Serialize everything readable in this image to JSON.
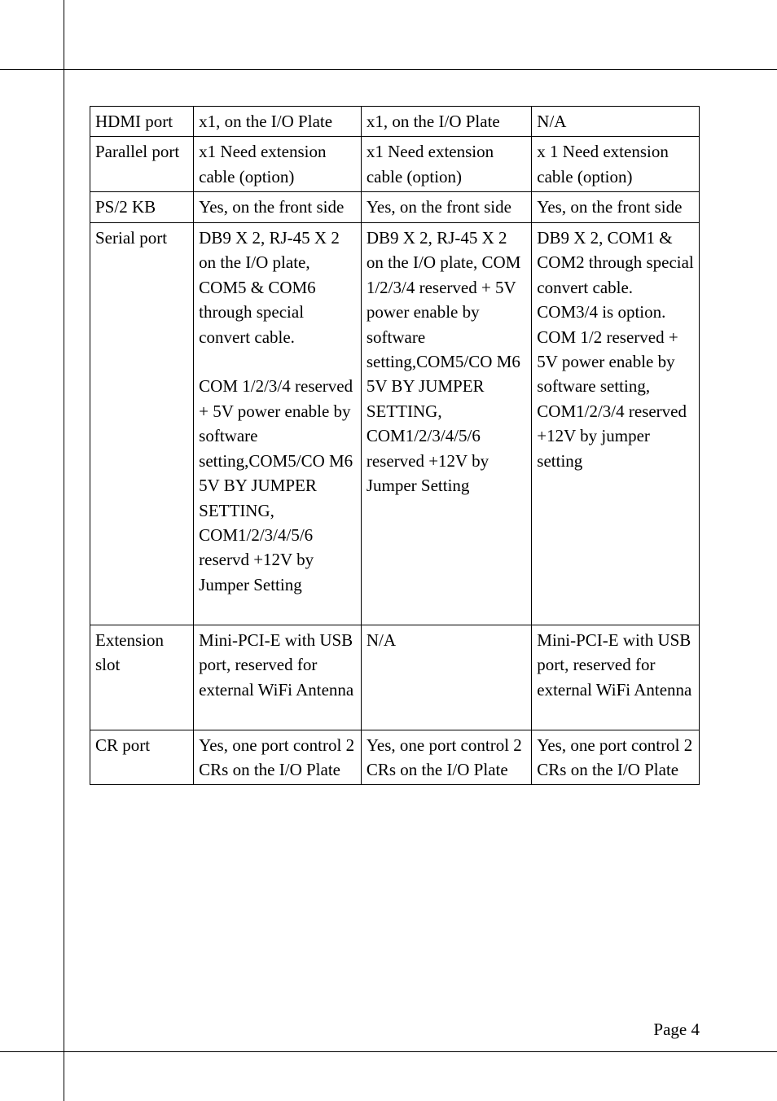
{
  "page_number": "Page 4",
  "table": {
    "rows": [
      {
        "label": "HDMI port",
        "col2": "x1, on the I/O Plate",
        "col3": "x1, on the I/O Plate",
        "col4": "N/A"
      },
      {
        "label": "Parallel port",
        "col2": "x1 Need extension cable (option)",
        "col3": "x1 Need extension cable (option)",
        "col4": "x 1 Need extension cable (option)"
      },
      {
        "label": "PS/2 KB",
        "col2": "Yes, on the front side",
        "col3": "Yes, on the front side",
        "col4": "Yes, on the front side"
      },
      {
        "label": "Serial port",
        "col2_parts": [
          "DB9 X 2, RJ-45 X 2 on the I/O plate, COM5 & COM6 through special convert cable.",
          "COM 1/2/3/4 reserved + 5V power enable by software setting,COM5/CO M6 5V BY JUMPER SETTING, COM1/2/3/4/5/6 reservd +12V by Jumper Setting"
        ],
        "col3": "DB9 X 2, RJ-45 X 2 on the I/O plate, COM 1/2/3/4 reserved + 5V power enable by software setting,COM5/CO M6 5V BY JUMPER SETTING, COM1/2/3/4/5/6 reserved +12V by Jumper Setting",
        "col4": "DB9 X 2, COM1 & COM2 through special convert cable. COM3/4 is option. COM 1/2 reserved + 5V power enable by software setting, COM1/2/3/4 reserved +12V by jumper setting"
      },
      {
        "label": "Extension slot",
        "col2": "Mini-PCI-E with USB port, reserved for external WiFi Antenna",
        "col3": "N/A",
        "col4": "Mini-PCI-E with USB port, reserved for external WiFi Antenna"
      },
      {
        "label": "CR port",
        "col2": "Yes, one port control 2 CRs on the I/O Plate",
        "col3": "Yes, one port control 2 CRs on the I/O Plate",
        "col4": "Yes, one port control 2 CRs on the I/O Plate"
      }
    ]
  }
}
